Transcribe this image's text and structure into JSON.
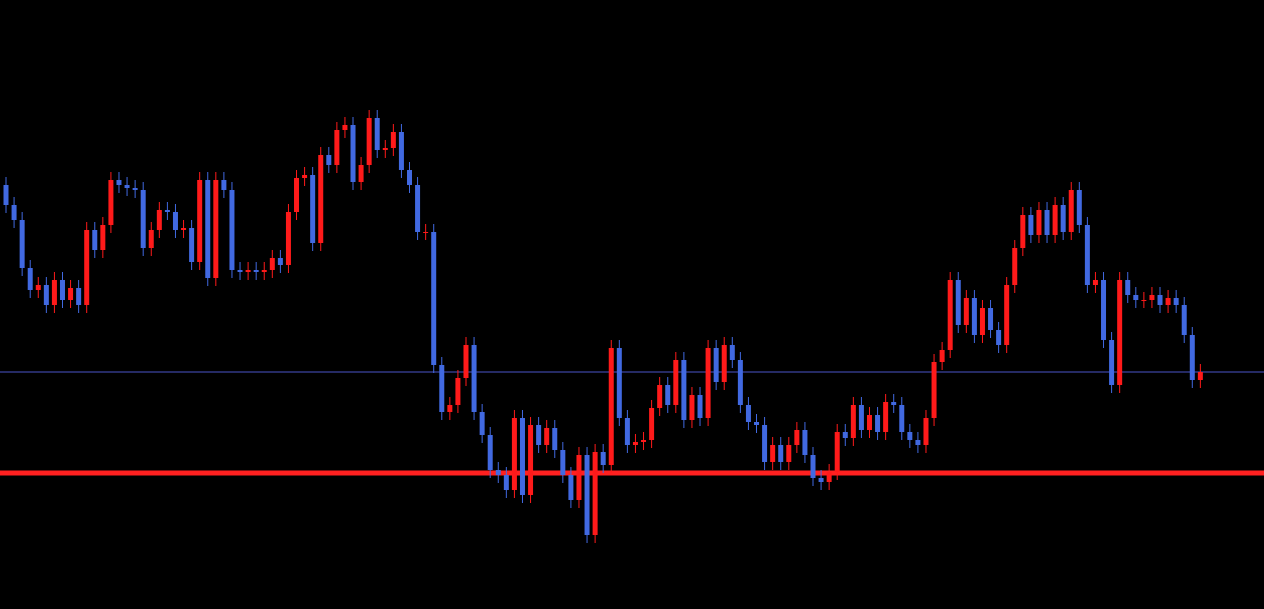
{
  "chart_data": {
    "type": "candlestick",
    "up_color": "#ff1a1a",
    "down_color": "#4169e1",
    "ylim": [
      0,
      609
    ],
    "open": [
      424,
      404,
      389,
      341,
      319,
      324,
      304,
      329,
      309,
      321,
      304,
      379,
      359,
      384,
      429,
      424,
      421,
      419,
      361,
      379,
      399,
      397,
      379,
      381,
      347,
      429,
      331,
      429,
      419,
      339,
      337,
      339,
      337,
      339,
      351,
      344,
      397,
      431,
      434,
      366,
      454,
      444,
      479,
      484,
      427,
      444,
      491,
      459,
      461,
      477,
      439,
      424,
      377,
      377,
      244,
      197,
      204,
      231,
      264,
      197,
      174,
      139,
      134,
      119,
      191,
      114,
      184,
      164,
      181,
      159,
      134,
      109,
      154,
      74,
      157,
      144,
      261,
      191,
      164,
      167,
      169,
      201,
      224,
      204,
      249,
      189,
      214,
      191,
      261,
      227,
      264,
      249,
      204,
      187,
      184,
      147,
      164,
      147,
      164,
      179,
      154,
      131,
      127,
      137,
      177,
      171,
      204,
      179,
      194,
      177,
      207,
      204,
      177,
      169,
      164,
      191,
      247,
      259,
      329,
      284,
      311,
      274,
      301,
      279,
      264,
      324,
      361,
      394,
      374,
      399,
      374,
      404,
      377,
      419,
      384,
      324,
      329,
      269,
      224,
      329,
      314,
      309,
      309,
      314,
      304,
      311,
      304,
      274,
      229
    ],
    "high": [
      432,
      412,
      397,
      349,
      332,
      332,
      337,
      337,
      329,
      329,
      387,
      387,
      392,
      437,
      437,
      432,
      429,
      427,
      387,
      407,
      407,
      405,
      389,
      389,
      437,
      437,
      437,
      437,
      427,
      347,
      347,
      347,
      347,
      359,
      359,
      405,
      439,
      442,
      442,
      462,
      462,
      487,
      492,
      492,
      452,
      499,
      499,
      469,
      485,
      485,
      447,
      432,
      385,
      385,
      252,
      212,
      239,
      272,
      272,
      205,
      182,
      147,
      142,
      199,
      199,
      192,
      192,
      189,
      189,
      167,
      142,
      162,
      162,
      165,
      165,
      269,
      269,
      199,
      175,
      177,
      209,
      232,
      232,
      257,
      257,
      222,
      222,
      269,
      269,
      272,
      272,
      257,
      212,
      195,
      192,
      172,
      172,
      172,
      187,
      187,
      162,
      139,
      145,
      185,
      185,
      212,
      212,
      202,
      202,
      215,
      215,
      212,
      185,
      177,
      199,
      255,
      267,
      337,
      337,
      319,
      319,
      309,
      309,
      287,
      332,
      369,
      402,
      402,
      407,
      407,
      412,
      412,
      427,
      427,
      392,
      337,
      337,
      277,
      337,
      337,
      322,
      317,
      322,
      322,
      319,
      319,
      312,
      282,
      245
    ],
    "low": [
      396,
      381,
      333,
      311,
      311,
      296,
      296,
      301,
      301,
      296,
      296,
      351,
      351,
      376,
      416,
      413,
      411,
      353,
      353,
      371,
      389,
      371,
      371,
      339,
      339,
      323,
      323,
      411,
      331,
      329,
      329,
      329,
      329,
      331,
      336,
      336,
      389,
      423,
      358,
      358,
      436,
      436,
      471,
      419,
      419,
      436,
      451,
      451,
      453,
      431,
      416,
      369,
      369,
      236,
      189,
      189,
      196,
      223,
      189,
      166,
      131,
      126,
      111,
      111,
      106,
      106,
      156,
      156,
      151,
      126,
      101,
      101,
      66,
      66,
      136,
      136,
      183,
      156,
      156,
      159,
      161,
      193,
      196,
      196,
      181,
      181,
      183,
      183,
      219,
      219,
      241,
      196,
      179,
      176,
      139,
      139,
      139,
      139,
      156,
      146,
      123,
      119,
      119,
      129,
      163,
      163,
      171,
      171,
      169,
      169,
      196,
      169,
      161,
      156,
      156,
      183,
      239,
      251,
      276,
      276,
      266,
      266,
      271,
      256,
      256,
      316,
      353,
      366,
      366,
      366,
      366,
      369,
      369,
      376,
      316,
      316,
      261,
      216,
      216,
      306,
      301,
      301,
      301,
      296,
      296,
      296,
      266,
      221,
      221
    ],
    "close": [
      404,
      389,
      341,
      319,
      324,
      304,
      329,
      309,
      321,
      304,
      379,
      359,
      384,
      429,
      424,
      421,
      419,
      361,
      379,
      399,
      397,
      379,
      381,
      347,
      429,
      331,
      429,
      419,
      339,
      337,
      339,
      337,
      339,
      351,
      344,
      397,
      431,
      434,
      366,
      454,
      444,
      479,
      484,
      427,
      444,
      491,
      459,
      461,
      477,
      439,
      424,
      377,
      377,
      244,
      197,
      204,
      231,
      264,
      197,
      174,
      139,
      134,
      119,
      191,
      114,
      184,
      164,
      181,
      159,
      134,
      109,
      154,
      74,
      157,
      144,
      261,
      191,
      164,
      167,
      169,
      201,
      224,
      204,
      249,
      189,
      214,
      191,
      261,
      227,
      264,
      249,
      204,
      187,
      184,
      147,
      164,
      147,
      164,
      179,
      154,
      131,
      127,
      137,
      177,
      171,
      204,
      179,
      194,
      177,
      207,
      204,
      177,
      169,
      164,
      191,
      247,
      259,
      329,
      284,
      311,
      274,
      301,
      279,
      264,
      324,
      361,
      394,
      374,
      399,
      374,
      404,
      377,
      419,
      384,
      324,
      329,
      269,
      224,
      329,
      314,
      309,
      309,
      314,
      304,
      311,
      304,
      274,
      229,
      237
    ],
    "hlines": [
      {
        "value": 237,
        "color": "#4a55c8"
      },
      {
        "value": 136,
        "color": "#ff2020"
      }
    ]
  }
}
